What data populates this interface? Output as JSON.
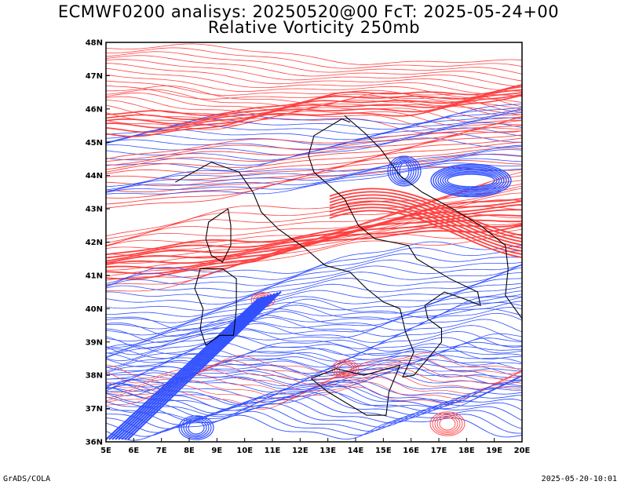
{
  "title_line1": "ECMWF0200 analisys: 20250520@00 FcT: 2025-05-24+00",
  "title_line2": "Relative Vorticity 250mb",
  "footer_left": "GrADS/COLA",
  "footer_right": "2025-05-20-10:01",
  "map": {
    "lon_min": 5,
    "lon_max": 20,
    "lat_min": 36,
    "lat_max": 48,
    "lat_labels": [
      "48N",
      "47N",
      "46N",
      "45N",
      "44N",
      "43N",
      "42N",
      "41N",
      "40N",
      "39N",
      "38N",
      "37N",
      "36N"
    ],
    "lon_labels": [
      "5E",
      "6E",
      "7E",
      "8E",
      "9E",
      "10E",
      "11E",
      "12E",
      "13E",
      "14E",
      "15E",
      "16E",
      "17E",
      "18E",
      "19E",
      "20E"
    ],
    "colors": {
      "positive": "#ff4040",
      "negative": "#3050ff",
      "coast": "#000000"
    }
  }
}
